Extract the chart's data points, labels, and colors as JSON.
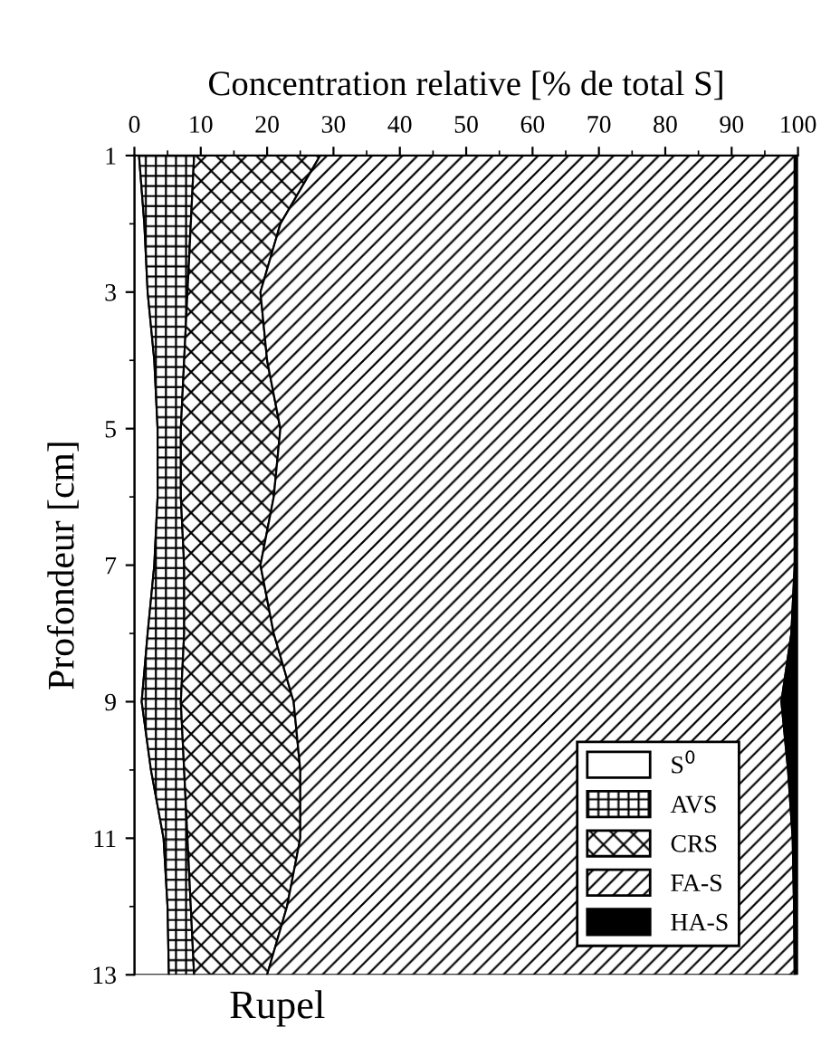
{
  "chart_data": {
    "type": "area",
    "orientation": "horizontal",
    "stacked": true,
    "xlabel": "Concentration relative [% de total S]",
    "ylabel": "Profondeur [cm]",
    "annotations": [
      "Rupel"
    ],
    "x": [
      1,
      2,
      3,
      4,
      5,
      6,
      7,
      8,
      9,
      10,
      11,
      12,
      13
    ],
    "xlim": [
      0,
      100
    ],
    "xticks": [
      0,
      10,
      20,
      30,
      40,
      50,
      60,
      70,
      80,
      90,
      100
    ],
    "ylim": [
      13,
      1
    ],
    "yticks": [
      1,
      3,
      5,
      7,
      9,
      11,
      13
    ],
    "grid": false,
    "legend": "bottom right",
    "series": [
      {
        "name": "S$^{0}$",
        "color": "#ffffff",
        "values": [
          0.7,
          1.5,
          2,
          3,
          3.5,
          3.5,
          3,
          2,
          1.1,
          2.5,
          4.4,
          5,
          5.2
        ]
      },
      {
        "name": "AVS",
        "color": "#000000",
        "values": [
          8.3,
          7,
          6,
          4.5,
          3.5,
          3.5,
          4.5,
          5.5,
          5.9,
          5,
          3.6,
          3.5,
          3.8
        ]
      },
      {
        "name": "CRS",
        "color": "#000000",
        "values": [
          19,
          13.5,
          11,
          12.5,
          15,
          14,
          11.5,
          13.5,
          17,
          17.5,
          17,
          14.5,
          11
        ]
      },
      {
        "name": "FA-S",
        "color": "#000000",
        "values": [
          71.5,
          77.5,
          80.5,
          79.5,
          77.5,
          78.5,
          80.5,
          78,
          73.5,
          73.5,
          74.2,
          76.4,
          79.5
        ]
      },
      {
        "name": "HA-S",
        "color": "#000000",
        "values": [
          0.5,
          0.5,
          0.5,
          0.5,
          0.5,
          0.5,
          0.5,
          1,
          2.5,
          1.5,
          0.8,
          0.6,
          0.5
        ]
      }
    ]
  }
}
